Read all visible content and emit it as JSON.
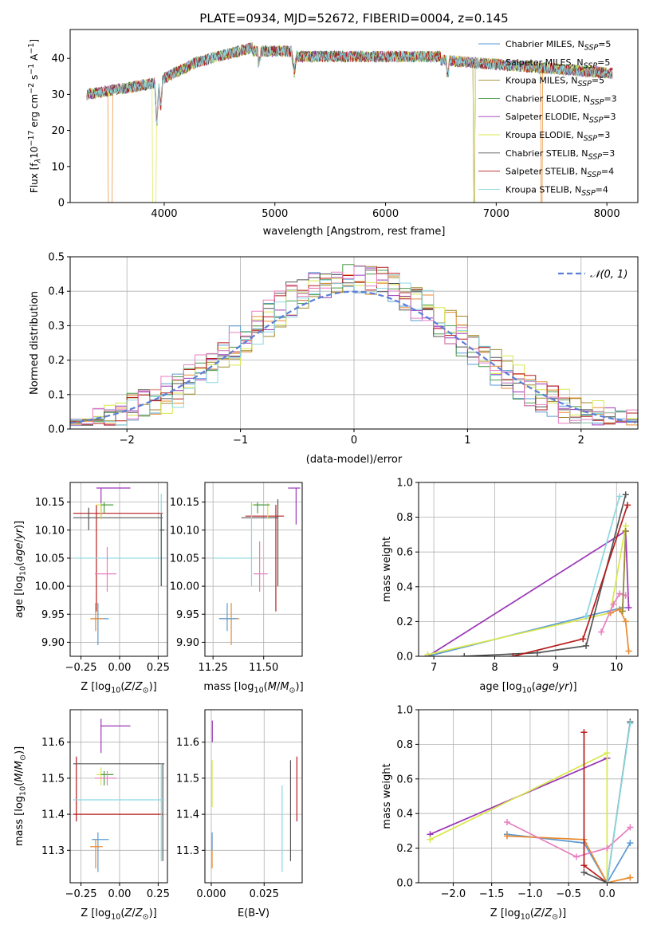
{
  "colors": {
    "Chabrier MILES": "#5a9bd4",
    "Salpeter MILES": "#e88a2e",
    "Kroupa MILES": "#a08a2a",
    "Chabrier ELODIE": "#4a9a4a",
    "Salpeter ELODIE": "#9b36b6",
    "Kroupa ELODIE": "#d8e84a",
    "Chabrier STELIB": "#555555",
    "Salpeter STELIB": "#b81c1c",
    "Kroupa STELIB": "#8ad8e0",
    "pink": "#e87fbf",
    "normal": "#5b7fd6"
  },
  "chart_data": [
    {
      "id": "spectrum",
      "type": "line",
      "title": "PLATE=0934, MJD=52672, FIBERID=0004, z=0.145",
      "xlabel": "wavelength [Angstrom, rest frame]",
      "ylabel_parts": [
        "Flux [f",
        "λ",
        "10",
        "−17",
        " erg cm",
        "−2",
        " s",
        "−1",
        " A",
        "−1",
        "]"
      ],
      "xlim": [
        3150,
        8280
      ],
      "ylim": [
        0,
        48
      ],
      "xticks": [
        4000,
        5000,
        6000,
        7000,
        8000
      ],
      "yticks": [
        0,
        10,
        20,
        30,
        40
      ],
      "x_range_data": [
        3300,
        8050
      ],
      "legend": [
        {
          "name": "Chabrier MILES",
          "n": "5"
        },
        {
          "name": "Salpeter MILES",
          "n": "5"
        },
        {
          "name": "Kroupa MILES",
          "n": "5"
        },
        {
          "name": "Chabrier ELODIE",
          "n": "3"
        },
        {
          "name": "Salpeter ELODIE",
          "n": "3"
        },
        {
          "name": "Kroupa ELODIE",
          "n": "3"
        },
        {
          "name": "Chabrier STELIB",
          "n": "3"
        },
        {
          "name": "Salpeter STELIB",
          "n": "4"
        },
        {
          "name": "Kroupa STELIB",
          "n": "4"
        }
      ],
      "legend_placement": "upper-right"
    },
    {
      "id": "residuals",
      "type": "histogram",
      "xlabel": "(data-model)/error",
      "ylabel": "Normed distribution",
      "xlim": [
        -2.5,
        2.5
      ],
      "ylim": [
        0,
        0.5
      ],
      "xticks": [
        -2,
        -1,
        0,
        1,
        2
      ],
      "yticks": [
        0.0,
        0.1,
        0.2,
        0.3,
        0.4,
        0.5
      ],
      "grid": true,
      "legend": "𝒩(0, 1)",
      "legend_placement": "upper-right",
      "envelope": [
        0.02,
        0.025,
        0.035,
        0.04,
        0.05,
        0.06,
        0.07,
        0.09,
        0.11,
        0.13,
        0.15,
        0.17,
        0.19,
        0.21,
        0.24,
        0.27,
        0.3,
        0.33,
        0.36,
        0.38,
        0.4,
        0.42,
        0.44,
        0.45,
        0.45,
        0.44,
        0.43,
        0.42,
        0.4,
        0.38,
        0.36,
        0.33,
        0.3,
        0.27,
        0.24,
        0.21,
        0.18,
        0.15,
        0.12,
        0.1,
        0.08,
        0.07,
        0.06,
        0.05,
        0.04,
        0.035,
        0.03,
        0.025,
        0.02,
        0.02
      ]
    },
    {
      "id": "Z-age",
      "type": "errorbar",
      "xlabel": "Z [log10(Z/Z⊙)]",
      "ylabel": "age [log10(age/yr)]",
      "xlim": [
        -0.32,
        0.31
      ],
      "ylim": [
        9.875,
        10.185
      ],
      "xticks": [
        -0.25,
        0.0,
        0.25
      ],
      "yticks": [
        9.9,
        9.95,
        10.0,
        10.05,
        10.1,
        10.15
      ]
    },
    {
      "id": "mass-age",
      "type": "errorbar",
      "xlabel": "mass [log10(M/M⊙)]",
      "xlim": [
        11.21,
        11.69
      ],
      "ylim": [
        9.875,
        10.185
      ],
      "xticks": [
        11.25,
        11.5
      ],
      "yticks": [
        9.9,
        9.95,
        10.0,
        10.05,
        10.1,
        10.15
      ]
    },
    {
      "id": "age-weight",
      "type": "line",
      "xlabel": "age [log10(age/yr)]",
      "ylabel": "mass weight",
      "xlim": [
        6.75,
        10.35
      ],
      "ylim": [
        0,
        1
      ],
      "xticks": [
        7,
        8,
        9,
        10
      ],
      "yticks": [
        0.0,
        0.2,
        0.4,
        0.6,
        0.8,
        1.0
      ]
    },
    {
      "id": "Z-mass",
      "type": "errorbar",
      "xlabel": "Z [log10(Z/Z⊙)]",
      "ylabel": "mass [log10(M/M⊙)]",
      "xlim": [
        -0.32,
        0.31
      ],
      "ylim": [
        11.21,
        11.69
      ],
      "xticks": [
        -0.25,
        0.0,
        0.25
      ],
      "yticks": [
        11.3,
        11.4,
        11.5,
        11.6
      ]
    },
    {
      "id": "ebv-mass",
      "type": "errorbar",
      "xlabel": "E(B-V)",
      "xlim": [
        -0.003,
        0.043
      ],
      "ylim": [
        11.21,
        11.69
      ],
      "xticks": [
        0.0,
        0.025
      ],
      "yticks": [
        11.3,
        11.4,
        11.5,
        11.6
      ]
    },
    {
      "id": "Z-weight",
      "type": "line",
      "xlabel": "Z [log10(Z/Z⊙)]",
      "ylabel": "mass weight",
      "xlim": [
        -2.45,
        0.4
      ],
      "ylim": [
        0,
        1
      ],
      "xticks": [
        -2.0,
        -1.5,
        -1.0,
        -0.5,
        0.0
      ],
      "yticks": [
        0.0,
        0.2,
        0.4,
        0.6,
        0.8,
        1.0
      ]
    }
  ]
}
